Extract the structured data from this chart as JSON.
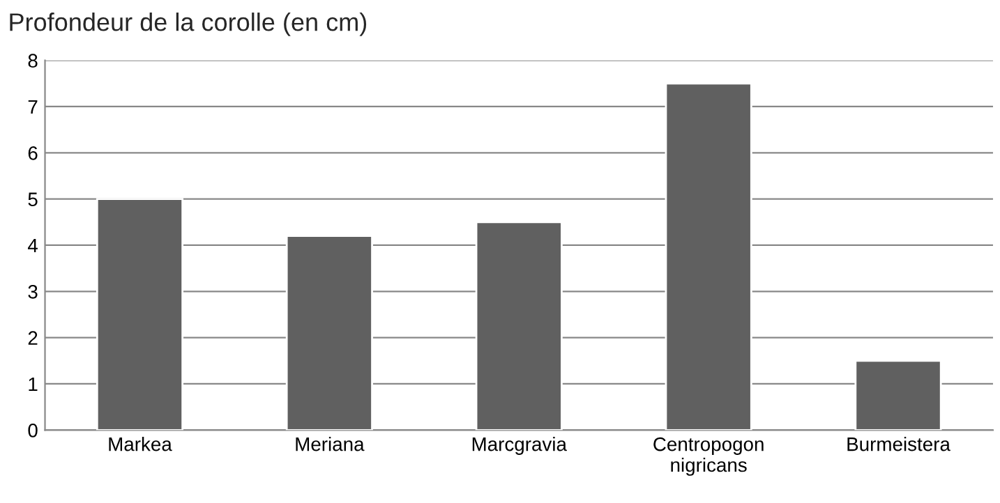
{
  "chart_data": {
    "type": "bar",
    "title": "Profondeur de la corolle (en cm)",
    "categories": [
      "Markea",
      "Meriana",
      "Marcgravia",
      "Centropogon\nnigricans",
      "Burmeistera"
    ],
    "values": [
      5,
      4.2,
      4.5,
      7.5,
      1.5
    ],
    "color": "#606060",
    "ylim": [
      0,
      8
    ],
    "yticks": [
      0,
      1,
      2,
      3,
      4,
      5,
      6,
      7,
      8
    ],
    "grid": "y",
    "legend": false
  }
}
